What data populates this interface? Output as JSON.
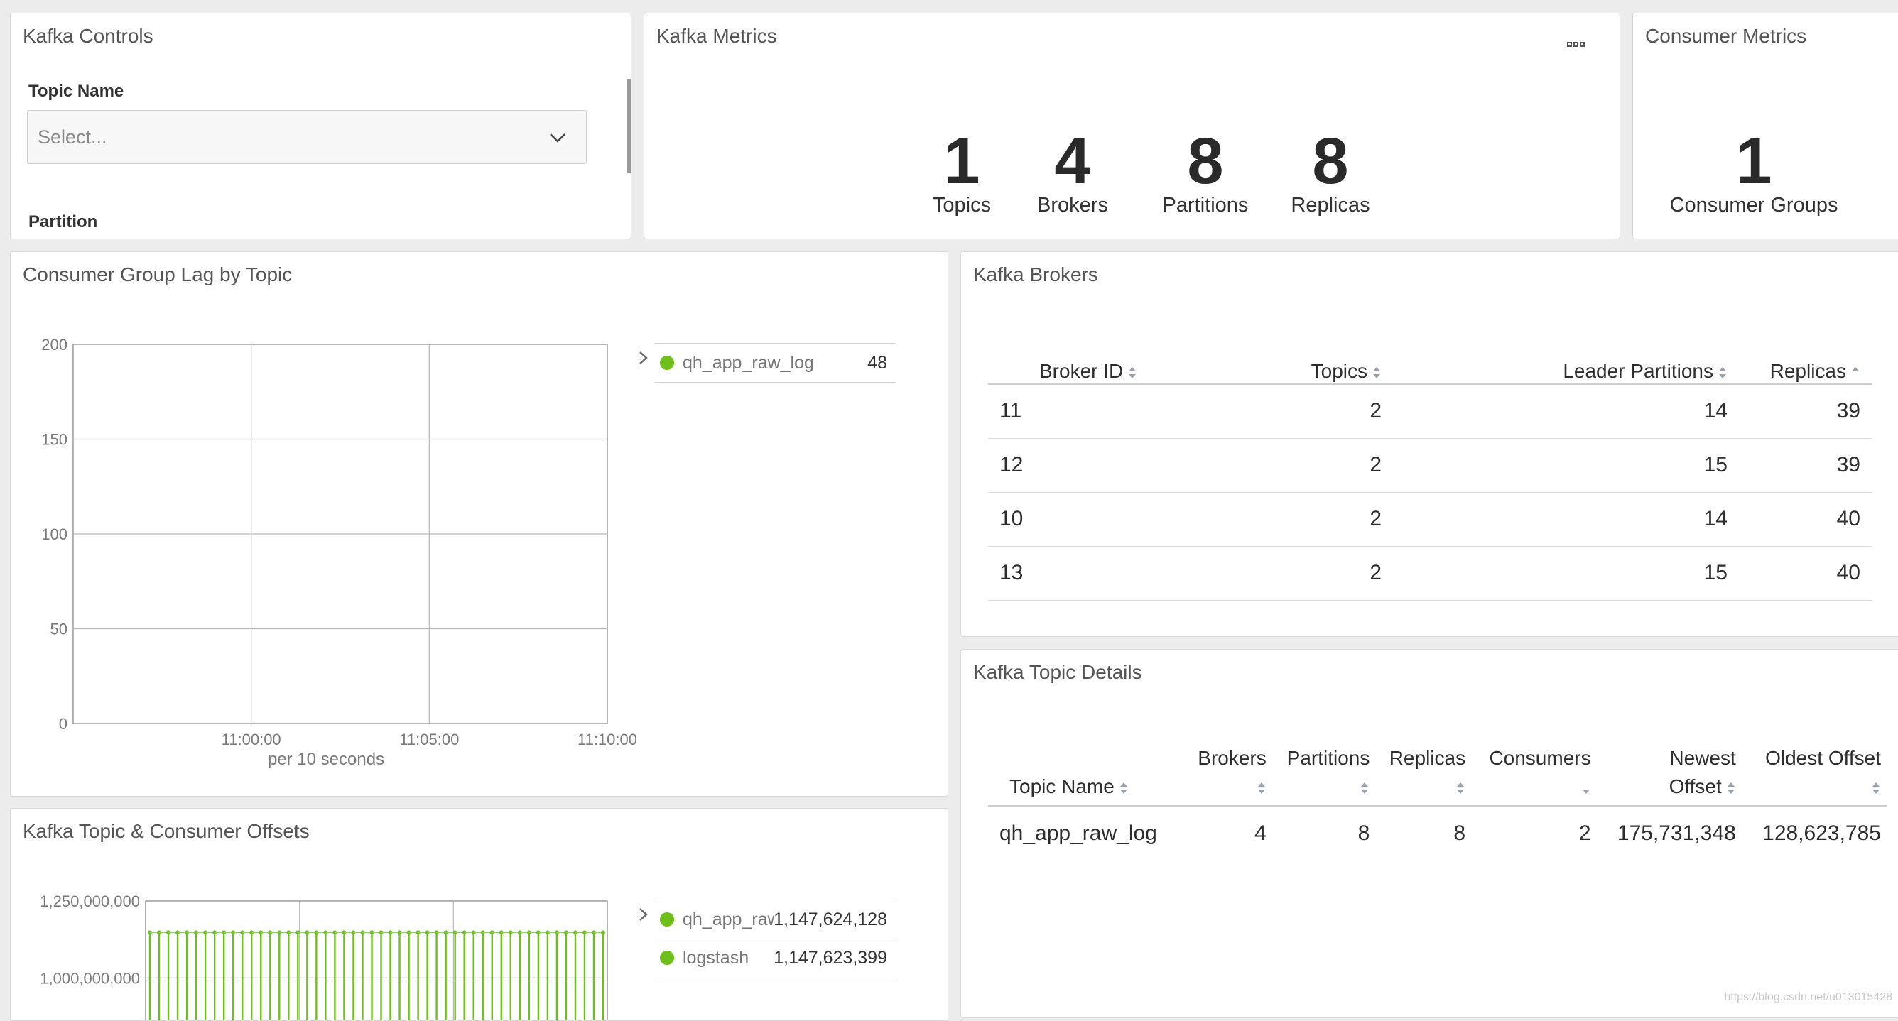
{
  "controls": {
    "title": "Kafka Controls",
    "topic_label": "Topic Name",
    "topic_placeholder": "Select...",
    "partition_label": "Partition"
  },
  "kafka_metrics": {
    "title": "Kafka Metrics",
    "menu_icon": "ellipsis-icon",
    "items": [
      {
        "value": "1",
        "label": "Topics"
      },
      {
        "value": "4",
        "label": "Brokers"
      },
      {
        "value": "8",
        "label": "Partitions"
      },
      {
        "value": "8",
        "label": "Replicas"
      }
    ]
  },
  "consumer_metrics": {
    "title": "Consumer Metrics",
    "value": "1",
    "label": "Consumer Groups"
  },
  "lag_chart": {
    "title": "Consumer Group Lag by Topic",
    "legend": [
      {
        "name": "qh_app_raw_log",
        "value": "48",
        "color": "#6ebf19"
      }
    ]
  },
  "offsets_chart": {
    "title": "Kafka Topic & Consumer Offsets",
    "legend": [
      {
        "name": "qh_app_raw_log",
        "value": "1,147,624,128",
        "color": "#6ebf19"
      },
      {
        "name": "logstash",
        "value": "1,147,623,399",
        "color": "#6ebf19"
      }
    ]
  },
  "brokers": {
    "title": "Kafka Brokers",
    "columns": [
      "Broker ID",
      "Topics",
      "Leader Partitions",
      "Replicas"
    ],
    "rows": [
      [
        "11",
        "2",
        "14",
        "39"
      ],
      [
        "12",
        "2",
        "15",
        "39"
      ],
      [
        "10",
        "2",
        "14",
        "40"
      ],
      [
        "13",
        "2",
        "15",
        "40"
      ]
    ]
  },
  "topic_details": {
    "title": "Kafka Topic Details",
    "columns": [
      {
        "line1": "",
        "line2": "Topic Name"
      },
      {
        "line1": "Brokers",
        "line2": ""
      },
      {
        "line1": "Partitions",
        "line2": ""
      },
      {
        "line1": "Replicas",
        "line2": ""
      },
      {
        "line1": "Consumers",
        "line2": ""
      },
      {
        "line1": "Newest",
        "line2": "Offset"
      },
      {
        "line1": "Oldest Offset",
        "line2": ""
      }
    ],
    "rows": [
      [
        "qh_app_raw_log",
        "4",
        "8",
        "8",
        "2",
        "175,731,348",
        "128,623,785"
      ]
    ]
  },
  "watermark": "https://blog.csdn.net/u013015428",
  "chart_data": [
    {
      "type": "line",
      "title": "Consumer Group Lag by Topic",
      "xlabel": "per 10 seconds",
      "ylabel": "",
      "ylim": [
        0,
        200
      ],
      "yticks": [
        "0",
        "50",
        "100",
        "150",
        "200"
      ],
      "xticks": [
        "11:00:00",
        "11:05:00",
        "11:10:00"
      ],
      "grid": true,
      "legend_position": "right",
      "series": [
        {
          "name": "qh_app_raw_log",
          "values": []
        }
      ]
    },
    {
      "type": "bar",
      "title": "Kafka Topic & Consumer Offsets",
      "xlabel": "",
      "ylabel": "",
      "yticks": [
        "1,000,000,000",
        "1,250,000,000"
      ],
      "grid": true,
      "legend_position": "right",
      "series": [
        {
          "name": "qh_app_raw_log",
          "value": 1147624128
        },
        {
          "name": "logstash",
          "value": 1147623399
        }
      ]
    }
  ]
}
